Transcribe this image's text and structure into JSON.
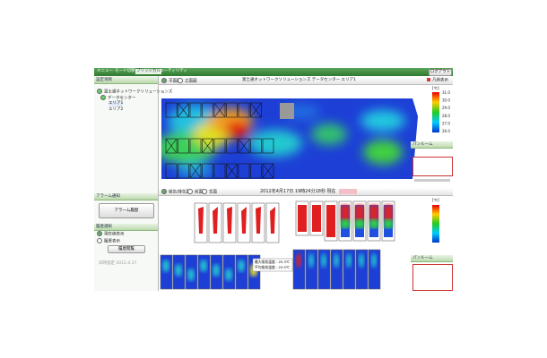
{
  "menu": {
    "items": [
      "メニュー",
      "モード切替",
      "ブリッジカル",
      "ユーティリティ"
    ],
    "logout": "ログアウト"
  },
  "left": {
    "header": "設定項目",
    "tree": [
      "富士通ネットワークソリューションズ",
      "データセンター",
      "エリア1",
      "エリア2"
    ],
    "alarm_header": "アラーム通知",
    "alarm_button": "アラーム履歴",
    "history_header": "履歴選択",
    "history_options": [
      "現在値表示",
      "履歴表示"
    ],
    "history_button": "履歴閲覧",
    "date": "日時指定 2012.4.17"
  },
  "floor": {
    "views": [
      "平面図",
      "立面図"
    ],
    "title": "富士通ネットワークソリューションズ データセンター エリア1",
    "legend_toggle": "凡例表示",
    "legend_unit": "[℃]",
    "legend_labels": [
      "31.0",
      "30.0",
      "29.0",
      "28.0",
      "27.0",
      "26.0"
    ]
  },
  "side_panels": [
    "パンルーム",
    "パンルーム"
  ],
  "rack": {
    "views": [
      "吸気/排気面",
      "前面",
      "背面"
    ],
    "timestamp": "2012年4月17日 19時24分18秒 現在",
    "tooltip": [
      "最大吸気温度 : 25.3℃",
      "平均吸気温度 : 23.5℃"
    ],
    "legend_unit": "[℃]",
    "legend_labels": [
      "25.0",
      "24.0",
      "23.0",
      "22.0"
    ]
  }
}
